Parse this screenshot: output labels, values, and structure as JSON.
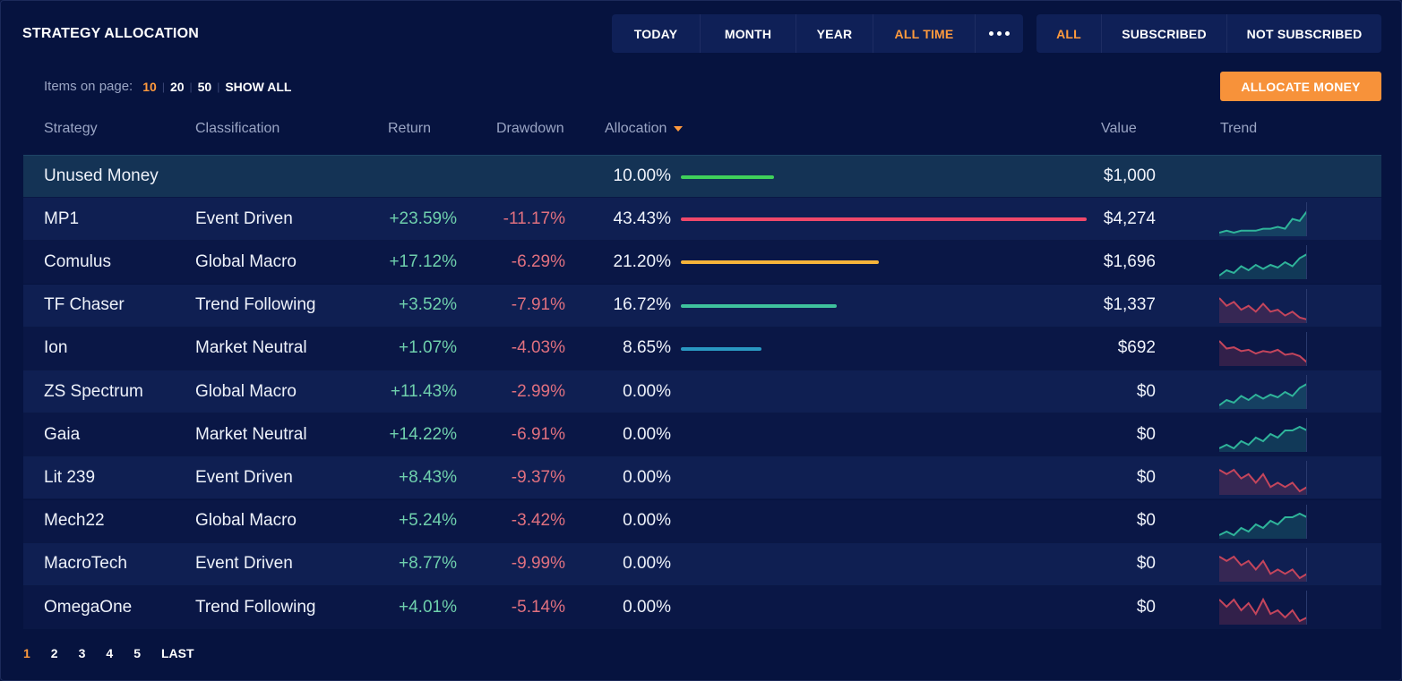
{
  "title": "STRATEGY ALLOCATION",
  "period_tabs": [
    "TODAY",
    "MONTH",
    "YEAR",
    "ALL TIME"
  ],
  "period_active": "ALL TIME",
  "more_icon": "more-dots-icon",
  "filter_tabs": [
    "ALL",
    "SUBSCRIBED",
    "NOT SUBSCRIBED"
  ],
  "filter_active": "ALL",
  "items_label": "Items on page:",
  "page_sizes": [
    "10",
    "20",
    "50"
  ],
  "page_size_active": "10",
  "show_all": "SHOW ALL",
  "allocate_button": "ALLOCATE MONEY",
  "columns": {
    "strategy": "Strategy",
    "classification": "Classification",
    "return": "Return",
    "drawdown": "Drawdown",
    "allocation": "Allocation",
    "value": "Value",
    "trend": "Trend"
  },
  "sort_icon": "sort-descending-caret-icon",
  "colors": {
    "accent": "#ff9a3d",
    "positive": "#6fd0ad",
    "negative": "#e0707f",
    "bar_green": "#3fd15a",
    "bar_red": "#f0486a",
    "bar_yellow": "#f5b43a",
    "bar_teal": "#3fc29d",
    "bar_blue": "#2a98c2"
  },
  "rows": [
    {
      "name": "Unused Money",
      "classification": "",
      "return": "",
      "drawdown": "",
      "allocation": "10.00%",
      "alloc_value": 10.0,
      "bar_color": "#3fd15a",
      "value": "$1,000",
      "trend": null
    },
    {
      "name": "MP1",
      "classification": "Event Driven",
      "return": "+23.59%",
      "drawdown": "-11.17%",
      "allocation": "43.43%",
      "alloc_value": 43.43,
      "bar_color": "#f0486a",
      "value": "$4,274",
      "trend": {
        "dir": "up",
        "points": [
          3,
          4,
          3,
          4,
          4,
          4,
          5,
          5,
          6,
          5,
          10,
          9,
          14
        ]
      }
    },
    {
      "name": "Comulus",
      "classification": "Global Macro",
      "return": "+17.12%",
      "drawdown": "-6.29%",
      "allocation": "21.20%",
      "alloc_value": 21.2,
      "bar_color": "#f5b43a",
      "value": "$1,696",
      "trend": {
        "dir": "up",
        "points": [
          4,
          8,
          6,
          11,
          8,
          12,
          9,
          12,
          10,
          14,
          11,
          17,
          20
        ]
      }
    },
    {
      "name": "TF Chaser",
      "classification": "Trend Following",
      "return": "+3.52%",
      "drawdown": "-7.91%",
      "allocation": "16.72%",
      "alloc_value": 16.72,
      "bar_color": "#3fc29d",
      "value": "$1,337",
      "trend": {
        "dir": "down",
        "points": [
          16,
          12,
          14,
          10,
          12,
          9,
          13,
          9,
          10,
          7,
          9,
          6,
          5
        ]
      }
    },
    {
      "name": "Ion",
      "classification": "Market Neutral",
      "return": "+1.07%",
      "drawdown": "-4.03%",
      "allocation": "8.65%",
      "alloc_value": 8.65,
      "bar_color": "#2a98c2",
      "value": "$692",
      "trend": {
        "dir": "down",
        "points": [
          20,
          14,
          15,
          12,
          13,
          10,
          12,
          11,
          13,
          9,
          10,
          8,
          3
        ]
      }
    },
    {
      "name": "ZS Spectrum",
      "classification": "Global Macro",
      "return": "+11.43%",
      "drawdown": "-2.99%",
      "allocation": "0.00%",
      "alloc_value": 0,
      "bar_color": null,
      "value": "$0",
      "trend": {
        "dir": "up",
        "points": [
          4,
          8,
          6,
          11,
          8,
          12,
          9,
          12,
          10,
          14,
          11,
          17,
          20
        ]
      }
    },
    {
      "name": "Gaia",
      "classification": "Market Neutral",
      "return": "+14.22%",
      "drawdown": "-6.91%",
      "allocation": "0.00%",
      "alloc_value": 0,
      "bar_color": null,
      "value": "$0",
      "trend": {
        "dir": "up",
        "points": [
          6,
          7,
          6,
          8,
          7,
          9,
          8,
          10,
          9,
          11,
          11,
          12,
          11
        ]
      }
    },
    {
      "name": "Lit 239",
      "classification": "Event Driven",
      "return": "+8.43%",
      "drawdown": "-9.37%",
      "allocation": "0.00%",
      "alloc_value": 0,
      "bar_color": null,
      "value": "$0",
      "trend": {
        "dir": "down",
        "points": [
          12,
          11,
          12,
          10,
          11,
          9,
          11,
          8,
          9,
          8,
          9,
          7,
          8
        ]
      }
    },
    {
      "name": "Mech22",
      "classification": "Global Macro",
      "return": "+5.24%",
      "drawdown": "-3.42%",
      "allocation": "0.00%",
      "alloc_value": 0,
      "bar_color": null,
      "value": "$0",
      "trend": {
        "dir": "up",
        "points": [
          6,
          7,
          6,
          8,
          7,
          9,
          8,
          10,
          9,
          11,
          11,
          12,
          11
        ]
      }
    },
    {
      "name": "MacroTech",
      "classification": "Event Driven",
      "return": "+8.77%",
      "drawdown": "-9.99%",
      "allocation": "0.00%",
      "alloc_value": 0,
      "bar_color": null,
      "value": "$0",
      "trend": {
        "dir": "down",
        "points": [
          12,
          11,
          12,
          10,
          11,
          9,
          11,
          8,
          9,
          8,
          9,
          7,
          8
        ]
      }
    },
    {
      "name": "OmegaOne",
      "classification": "Trend Following",
      "return": "+4.01%",
      "drawdown": "-5.14%",
      "allocation": "0.00%",
      "alloc_value": 0,
      "bar_color": null,
      "value": "$0",
      "trend": {
        "dir": "down",
        "points": [
          12,
          10,
          12,
          9,
          11,
          8,
          12,
          8,
          9,
          7,
          9,
          6,
          7
        ]
      }
    }
  ],
  "pagination": [
    "1",
    "2",
    "3",
    "4",
    "5",
    "LAST"
  ],
  "page_active": "1"
}
